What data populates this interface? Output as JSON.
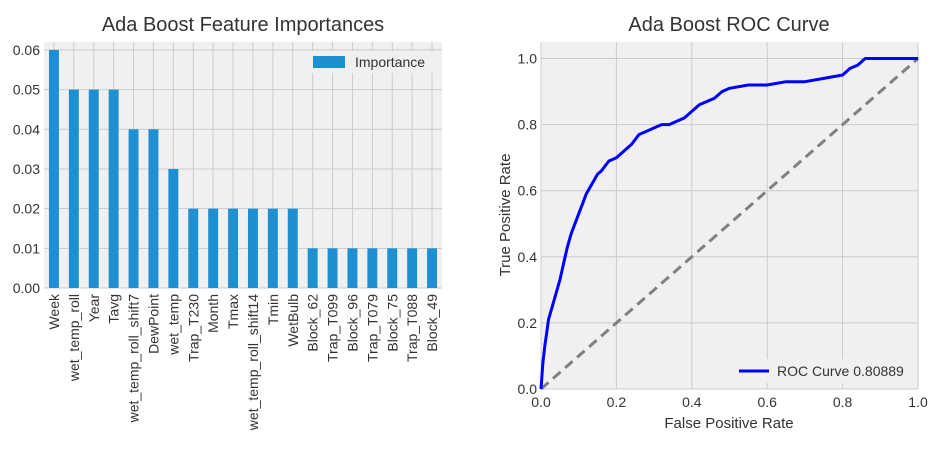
{
  "chart_data": [
    {
      "type": "bar",
      "title": "Ada Boost Feature Importances",
      "categories": [
        "Week",
        "wet_temp_roll",
        "Year",
        "Tavg",
        "wet_temp_roll_shift7",
        "DewPoint",
        "wet_temp",
        "Trap_T230",
        "Month",
        "Tmax",
        "wet_temp_roll_shift14",
        "Tmin",
        "WetBulb",
        "Block_62",
        "Trap_T099",
        "Block_96",
        "Trap_T079",
        "Block_75",
        "Trap_T088",
        "Block_49"
      ],
      "series": [
        {
          "name": "Importance",
          "values": [
            0.06,
            0.05,
            0.05,
            0.05,
            0.04,
            0.04,
            0.03,
            0.02,
            0.02,
            0.02,
            0.02,
            0.02,
            0.02,
            0.01,
            0.01,
            0.01,
            0.01,
            0.01,
            0.01,
            0.01
          ]
        }
      ],
      "ylim": [
        0,
        0.062
      ],
      "yticks": [
        0.0,
        0.01,
        0.02,
        0.03,
        0.04,
        0.05,
        0.06
      ],
      "ytick_labels": [
        "0.00",
        "0.01",
        "0.02",
        "0.03",
        "0.04",
        "0.05",
        "0.06"
      ],
      "legend_position": "top-right",
      "grid": true,
      "bar_color": "#1e90d2"
    },
    {
      "type": "line",
      "title": "Ada Boost ROC Curve",
      "xlabel": "False Positive Rate",
      "ylabel": "True Positive Rate",
      "xlim": [
        0,
        1
      ],
      "ylim": [
        0,
        1.05
      ],
      "xticks": [
        0.0,
        0.2,
        0.4,
        0.6,
        0.8,
        1.0
      ],
      "xtick_labels": [
        "0.0",
        "0.2",
        "0.4",
        "0.6",
        "0.8",
        "1.0"
      ],
      "yticks": [
        0.0,
        0.2,
        0.4,
        0.6,
        0.8,
        1.0
      ],
      "ytick_labels": [
        "0.0",
        "0.2",
        "0.4",
        "0.6",
        "0.8",
        "1.0"
      ],
      "legend_position": "lower-right",
      "grid": true,
      "series": [
        {
          "name": "ROC Curve 0.80889",
          "color": "#0000ff",
          "x": [
            0.0,
            0.005,
            0.01,
            0.015,
            0.02,
            0.03,
            0.04,
            0.05,
            0.06,
            0.07,
            0.08,
            0.09,
            0.1,
            0.11,
            0.12,
            0.13,
            0.14,
            0.15,
            0.16,
            0.18,
            0.2,
            0.22,
            0.24,
            0.26,
            0.28,
            0.3,
            0.32,
            0.34,
            0.36,
            0.38,
            0.4,
            0.42,
            0.44,
            0.46,
            0.48,
            0.5,
            0.55,
            0.6,
            0.65,
            0.7,
            0.75,
            0.8,
            0.82,
            0.84,
            0.86,
            0.9,
            1.0
          ],
          "y": [
            0.0,
            0.08,
            0.13,
            0.17,
            0.21,
            0.25,
            0.29,
            0.33,
            0.38,
            0.43,
            0.47,
            0.5,
            0.53,
            0.56,
            0.59,
            0.61,
            0.63,
            0.65,
            0.66,
            0.69,
            0.7,
            0.72,
            0.74,
            0.77,
            0.78,
            0.79,
            0.8,
            0.8,
            0.81,
            0.82,
            0.84,
            0.86,
            0.87,
            0.88,
            0.9,
            0.91,
            0.92,
            0.92,
            0.93,
            0.93,
            0.94,
            0.95,
            0.97,
            0.98,
            1.0,
            1.0,
            1.0
          ]
        },
        {
          "name": "",
          "color": "#808080",
          "dashed": true,
          "x": [
            0,
            1
          ],
          "y": [
            0,
            1
          ]
        }
      ]
    }
  ]
}
